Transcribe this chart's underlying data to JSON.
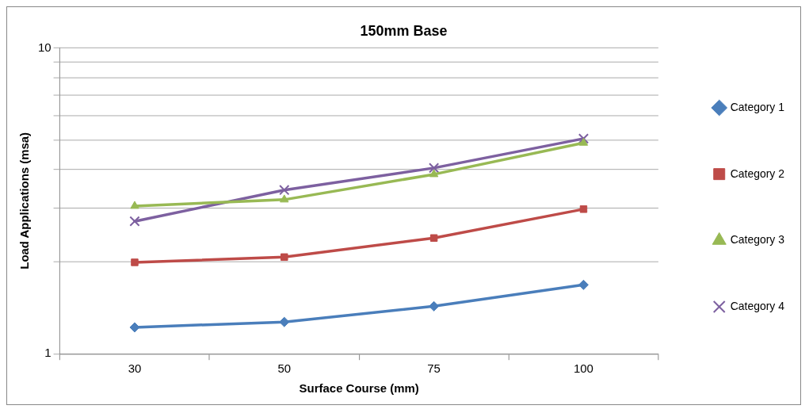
{
  "chart_data": {
    "type": "line",
    "title": "150mm Base",
    "xlabel": "Surface Course (mm)",
    "ylabel": "Load Applications (msa)",
    "categories": [
      "30",
      "50",
      "75",
      "100"
    ],
    "series": [
      {
        "name": "Category 1",
        "color": "#4a7ebb",
        "marker": "diamond",
        "values": [
          1.22,
          1.27,
          1.43,
          1.68
        ]
      },
      {
        "name": "Category 2",
        "color": "#be4b48",
        "marker": "square",
        "values": [
          1.99,
          2.07,
          2.39,
          2.97
        ]
      },
      {
        "name": "Category 3",
        "color": "#98b954",
        "marker": "triangle",
        "values": [
          3.04,
          3.19,
          3.86,
          4.89
        ]
      },
      {
        "name": "Category 4",
        "color": "#7d60a0",
        "marker": "cross",
        "values": [
          2.71,
          3.43,
          4.05,
          5.05
        ]
      }
    ],
    "log": "y",
    "ylim": [
      1,
      10
    ],
    "yticks": [
      1,
      {
        "value": 2,
        "label": null
      },
      {
        "value": 3,
        "label": null
      },
      {
        "value": 4,
        "label": null
      },
      {
        "value": 5,
        "label": null
      },
      {
        "value": 6,
        "label": null
      },
      {
        "value": 7,
        "label": null
      },
      {
        "value": 8,
        "label": null
      },
      {
        "value": 9,
        "label": null
      },
      10
    ],
    "grid": "y",
    "legend": "right",
    "line_style": "solid"
  }
}
